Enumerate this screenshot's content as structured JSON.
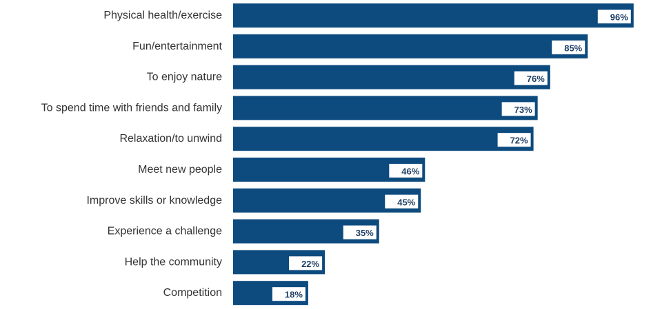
{
  "chart_data": {
    "type": "bar",
    "orientation": "horizontal",
    "categories": [
      "Physical health/exercise",
      "Fun/entertainment",
      "To enjoy nature",
      "To spend time with friends and family",
      "Relaxation/to unwind",
      "Meet new people",
      "Improve skills or knowledge",
      "Experience a challenge",
      "Help the community",
      "Competition"
    ],
    "values": [
      96,
      85,
      76,
      73,
      72,
      46,
      45,
      35,
      22,
      18
    ],
    "value_labels": [
      "96%",
      "85%",
      "76%",
      "73%",
      "72%",
      "46%",
      "45%",
      "35%",
      "22%",
      "18%"
    ],
    "title": "",
    "xlabel": "",
    "ylabel": "",
    "xlim": [
      0,
      100
    ],
    "grid": false,
    "legend": "none",
    "bar_color": "#0d4a7e"
  }
}
